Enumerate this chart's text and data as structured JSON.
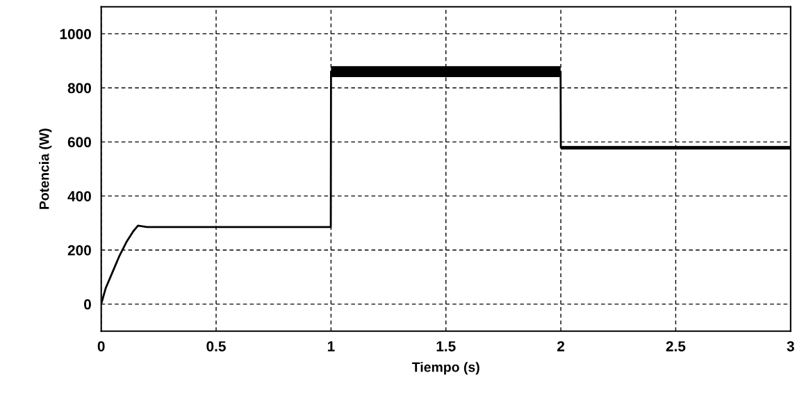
{
  "chart_data": {
    "type": "line",
    "xlabel": "Tiempo (s)",
    "ylabel": "Potencia (W)",
    "x": [
      0,
      0.02,
      0.05,
      0.08,
      0.11,
      0.14,
      0.16,
      0.2,
      0.5,
      0.999,
      1.0,
      1.02,
      1.5,
      1.999,
      2.0,
      2.5,
      3.0
    ],
    "series": [
      {
        "color": "#000000",
        "values": [
          0,
          60,
          120,
          180,
          230,
          270,
          290,
          285,
          285,
          285,
          860,
          860,
          860,
          860,
          580,
          580,
          580
        ],
        "lower": [
          null,
          null,
          null,
          null,
          null,
          null,
          null,
          null,
          null,
          null,
          840,
          840,
          840,
          840,
          572,
          572,
          572
        ],
        "upper": [
          null,
          null,
          null,
          null,
          null,
          null,
          null,
          null,
          null,
          null,
          880,
          880,
          880,
          880,
          585,
          585,
          585
        ]
      }
    ],
    "xlim": [
      0,
      3
    ],
    "xticks": [
      0,
      0.5,
      1,
      1.5,
      2,
      2.5,
      3
    ],
    "ylim": [
      -100,
      1100
    ],
    "yticks": [
      0,
      200,
      400,
      600,
      800,
      1000
    ],
    "grid": true,
    "line_style": "solid",
    "marker": "none"
  }
}
